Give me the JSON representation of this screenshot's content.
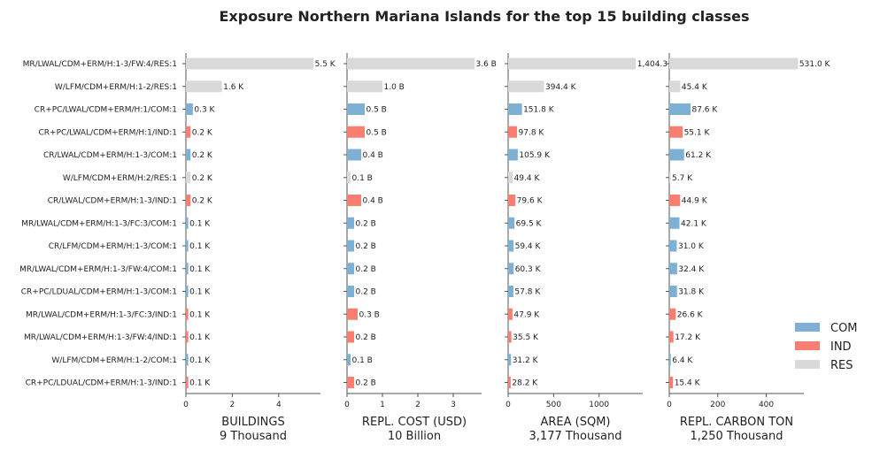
{
  "chart_data": {
    "type": "bar",
    "orientation": "horizontal",
    "title": "Exposure Northern Mariana Islands for the top 15 building classes",
    "categories": [
      "MR/LWAL/CDM+ERM/H:1-3/FW:4/RES:1",
      "W/LFM/CDM+ERM/H:1-2/RES:1",
      "CR+PC/LWAL/CDM+ERM/H:1/COM:1",
      "CR+PC/LWAL/CDM+ERM/H:1/IND:1",
      "CR/LWAL/CDM+ERM/H:1-3/COM:1",
      "W/LFM/CDM+ERM/H:2/RES:1",
      "CR/LWAL/CDM+ERM/H:1-3/IND:1",
      "MR/LWAL/CDM+ERM/H:1-3/FC:3/COM:1",
      "CR/LFM/CDM+ERM/H:1-3/COM:1",
      "MR/LWAL/CDM+ERM/H:1-3/FW:4/COM:1",
      "CR+PC/LDUAL/CDM+ERM/H:1-3/COM:1",
      "MR/LWAL/CDM+ERM/H:1-3/FC:3/IND:1",
      "MR/LWAL/CDM+ERM/H:1-3/FW:4/IND:1",
      "W/LFM/CDM+ERM/H:1-2/COM:1",
      "CR+PC/LDUAL/CDM+ERM/H:1-3/IND:1"
    ],
    "occupancy": [
      "RES",
      "RES",
      "COM",
      "IND",
      "COM",
      "RES",
      "IND",
      "COM",
      "COM",
      "COM",
      "COM",
      "IND",
      "IND",
      "COM",
      "IND"
    ],
    "colors": {
      "COM": "#7eb0d4",
      "IND": "#f77f72",
      "RES": "#d9d9d9"
    },
    "legend": {
      "position": "right",
      "entries": [
        "COM",
        "IND",
        "RES"
      ]
    },
    "panels": [
      {
        "xlabel": "BUILDINGS",
        "total": "9 Thousand",
        "unit": "thousand buildings",
        "xlim": [
          0,
          5.8
        ],
        "ticks": [
          0,
          2,
          4
        ],
        "tick_labels": [
          "0",
          "2",
          "4"
        ],
        "values": [
          5.5,
          1.55,
          0.3,
          0.2,
          0.2,
          0.2,
          0.2,
          0.1,
          0.1,
          0.1,
          0.1,
          0.1,
          0.1,
          0.1,
          0.1
        ],
        "labels": [
          "5.5 K",
          "1.6 K",
          "0.3 K",
          "0.2 K",
          "0.2 K",
          "0.2 K",
          "0.2 K",
          "0.1 K",
          "0.1 K",
          "0.1 K",
          "0.1 K",
          "0.1 K",
          "0.1 K",
          "0.1 K",
          "0.1 K"
        ]
      },
      {
        "xlabel": "REPL. COST (USD)",
        "total": "10 Billion",
        "unit": "billion USD",
        "xlim": [
          0,
          3.8
        ],
        "ticks": [
          0,
          1,
          2,
          3
        ],
        "tick_labels": [
          "0",
          "1",
          "2",
          "3"
        ],
        "values": [
          3.6,
          1.0,
          0.5,
          0.5,
          0.4,
          0.1,
          0.4,
          0.2,
          0.2,
          0.2,
          0.2,
          0.3,
          0.2,
          0.1,
          0.2
        ],
        "labels": [
          "3.6 B",
          "1.0 B",
          "0.5 B",
          "0.5 B",
          "0.4 B",
          "0.1 B",
          "0.4 B",
          "0.2 B",
          "0.2 B",
          "0.2 B",
          "0.2 B",
          "0.3 B",
          "0.2 B",
          "0.1 B",
          "0.2 B"
        ]
      },
      {
        "xlabel": "AREA (SQM)",
        "total": "3,177 Thousand",
        "unit": "thousand sqm",
        "xlim": [
          0,
          1480
        ],
        "ticks": [
          0,
          500,
          1000
        ],
        "tick_labels": [
          "0",
          "500",
          "1000"
        ],
        "values": [
          1404.3,
          394.4,
          151.8,
          97.8,
          105.9,
          49.4,
          79.6,
          69.5,
          59.4,
          60.3,
          57.8,
          47.9,
          35.5,
          31.2,
          28.2
        ],
        "labels": [
          "1,404.3",
          "394.4 K",
          "151.8 K",
          "97.8 K",
          "105.9 K",
          "49.4 K",
          "79.6 K",
          "69.5 K",
          "59.4 K",
          "60.3 K",
          "57.8 K",
          "47.9 K",
          "35.5 K",
          "31.2 K",
          "28.2 K"
        ]
      },
      {
        "xlabel": "REPL. CARBON TON",
        "total": "1,250 Thousand",
        "unit": "thousand tons",
        "xlim": [
          0,
          555
        ],
        "ticks": [
          0,
          200,
          400
        ],
        "tick_labels": [
          "0",
          "200",
          "400"
        ],
        "values": [
          531.0,
          45.4,
          87.6,
          55.1,
          61.2,
          5.7,
          44.9,
          42.1,
          31.0,
          32.4,
          31.8,
          26.6,
          17.2,
          6.4,
          15.4
        ],
        "labels": [
          "531.0 K",
          "45.4 K",
          "87.6 K",
          "55.1 K",
          "61.2 K",
          "5.7 K",
          "44.9 K",
          "42.1 K",
          "31.0 K",
          "32.4 K",
          "31.8 K",
          "26.6 K",
          "17.2 K",
          "6.4 K",
          "15.4 K"
        ]
      }
    ]
  }
}
